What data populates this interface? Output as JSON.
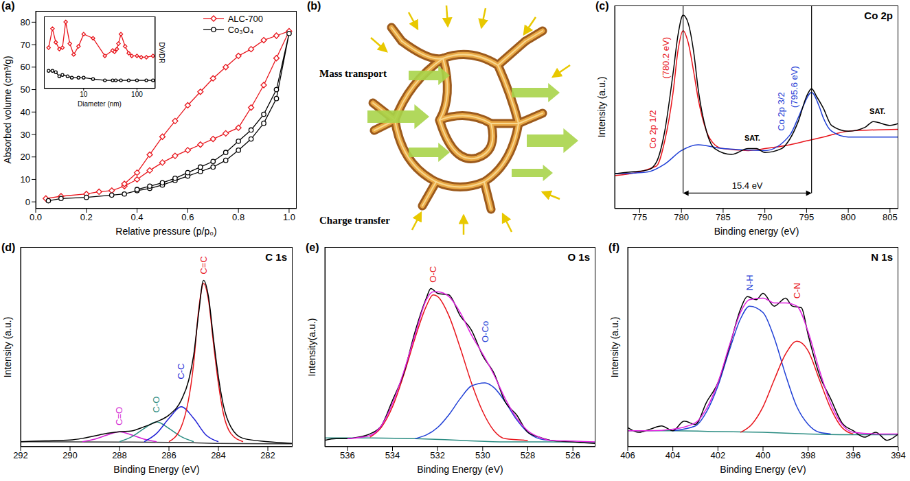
{
  "chart_data": [
    {
      "panel": "(a)",
      "type": "line",
      "x_label": "Relative pressure (p/p₀)",
      "y_label": "Absorbed volume (cm³/g)",
      "xlim": [
        0,
        1.03
      ],
      "xticks": [
        {
          "value": 0,
          "label": "0.0"
        },
        0.2,
        0.4,
        0.6,
        0.8,
        {
          "value": 1,
          "label": "1.0"
        }
      ],
      "ylim": [
        -3,
        85
      ],
      "yticks": [
        0,
        10,
        20,
        30,
        40,
        50,
        60,
        70,
        80
      ],
      "legend": "upper right",
      "series": [
        {
          "name": "ALC-700",
          "color": "#e8141b",
          "marker": "diamond",
          "x": [
            0.04,
            0.1,
            0.2,
            0.25,
            0.3,
            0.35,
            0.4,
            0.45,
            0.5,
            0.55,
            0.6,
            0.65,
            0.7,
            0.75,
            0.8,
            0.85,
            0.9,
            0.95,
            1.0,
            0.95,
            0.9,
            0.85,
            0.8,
            0.75,
            0.7,
            0.65,
            0.6,
            0.55,
            0.5,
            0.45,
            0.4,
            0.35
          ],
          "values": [
            1.5,
            2.5,
            3.5,
            4.5,
            5,
            7,
            10,
            14,
            17.5,
            20.5,
            23,
            25.5,
            28,
            30.5,
            33,
            42,
            52,
            64,
            76,
            74,
            72,
            68,
            65,
            60,
            55,
            49,
            43,
            36,
            29,
            21,
            13,
            8
          ]
        },
        {
          "name": "Co₃O₄",
          "color": "#000000",
          "marker": "circle",
          "x": [
            0.05,
            0.1,
            0.2,
            0.3,
            0.35,
            0.4,
            0.45,
            0.5,
            0.55,
            0.6,
            0.65,
            0.7,
            0.75,
            0.8,
            0.85,
            0.9,
            0.95,
            1.0,
            0.95,
            0.9,
            0.85,
            0.8,
            0.75,
            0.7,
            0.65,
            0.6,
            0.55,
            0.5,
            0.45,
            0.4
          ],
          "values": [
            0.5,
            1.5,
            2,
            3,
            3.5,
            5,
            6,
            7.5,
            9.5,
            11.5,
            13.5,
            15.5,
            18.5,
            23,
            28,
            35,
            46,
            75,
            50,
            39,
            32,
            27,
            22,
            18,
            15.5,
            13,
            10.5,
            8.5,
            7,
            5.5
          ]
        }
      ],
      "inset": {
        "type": "line",
        "x_label": "Diameter (nm)",
        "y_label": "DV/DR",
        "log": "x",
        "xlim": [
          1.8,
          220
        ],
        "xticks": [
          10,
          100
        ],
        "ylim": [
          35,
          88
        ],
        "tick_labels": "x",
        "series": [
          {
            "color": "#e8141b",
            "marker": "diamond",
            "x": [
              2.2,
              2.6,
              3,
              3.5,
              4,
              4.6,
              5.5,
              6.5,
              8,
              10,
              15,
              25,
              35,
              38,
              42,
              45,
              50,
              60,
              70,
              80,
              100,
              120,
              150,
              200
            ],
            "values": [
              65,
              79,
              69,
              64,
              65,
              84,
              68,
              60,
              66,
              75,
              72,
              59,
              63,
              62,
              64,
              68,
              75,
              66,
              61,
              59,
              59,
              58,
              58,
              59
            ]
          },
          {
            "color": "#000000",
            "marker": "circle",
            "x": [
              2.2,
              2.6,
              3,
              3.5,
              4,
              5,
              6,
              8,
              10,
              15,
              25,
              35,
              40,
              50,
              70,
              100,
              150,
              200
            ],
            "values": [
              48,
              48,
              47,
              44,
              45,
              44,
              43,
              43,
              43,
              42,
              41,
              41,
              41,
              41,
              41,
              41,
              41,
              41
            ]
          }
        ]
      }
    },
    {
      "panel": "(c)",
      "type": "line",
      "title": "Co 2p",
      "x_label": "Binding energy (eV)",
      "y_label": "Intensity (a.u.)",
      "xlim": [
        772,
        806
      ],
      "xticks": [
        775,
        780,
        785,
        790,
        795,
        800,
        805
      ],
      "ylim": [
        0,
        105
      ],
      "tick_labels": "x",
      "series": [
        {
          "color": "#e8141b",
          "x": [
            772,
            777,
            778,
            779,
            779.6,
            780.2,
            780.8,
            781.5,
            782,
            783,
            784,
            785,
            788,
            790,
            793,
            795,
            797,
            800,
            806
          ],
          "values": [
            17,
            22,
            35,
            60,
            82,
            92,
            86,
            70,
            57,
            40,
            33,
            31,
            30,
            31,
            33,
            35,
            37,
            40,
            41
          ]
        },
        {
          "color": "#1f3fd6",
          "x": [
            772,
            776,
            778,
            780,
            782,
            785,
            790,
            793,
            794,
            794.5,
            795.6,
            796.5,
            797,
            798,
            800,
            806
          ],
          "values": [
            18,
            19,
            23,
            30,
            33,
            31,
            30,
            38,
            47,
            52,
            60,
            53,
            47,
            40,
            37,
            37
          ]
        },
        {
          "color": "#000000",
          "x": [
            772,
            774,
            776,
            777,
            778,
            779,
            779.6,
            780.2,
            780.8,
            781.5,
            782,
            783,
            784,
            786,
            788,
            789,
            790,
            792,
            793,
            794,
            795,
            795.6,
            796.2,
            797,
            798,
            800,
            802,
            803,
            805,
            806
          ],
          "values": [
            18,
            19,
            20,
            24,
            40,
            70,
            90,
            100,
            96,
            80,
            62,
            40,
            31,
            28,
            31,
            31,
            29,
            31,
            36,
            45,
            58,
            62,
            58,
            52,
            43,
            40,
            42,
            45,
            43,
            44
          ]
        }
      ],
      "peaks": [
        {
          "x": 780.2,
          "name": "Co 2p 1/2",
          "label": "(780.2 eV)",
          "color": "#e8141b"
        },
        {
          "x": 795.6,
          "name": "Co 2p 3/2",
          "label": "(795.6 eV)",
          "color": "#1f3fd6"
        }
      ],
      "separation": {
        "from": 780.2,
        "to": 795.6,
        "y": 8,
        "label": "15.4 eV"
      },
      "annotations": [
        {
          "text": "SAT.",
          "x": 788.5,
          "y": 35
        },
        {
          "text": "SAT.",
          "x": 803.5,
          "y": 49
        }
      ]
    },
    {
      "panel": "(d)",
      "type": "line",
      "title": "C 1s",
      "x_label": "Binding Energy (eV)",
      "y_label": "Intensity (a.u.)",
      "xlim": [
        292,
        281
      ],
      "xticks": [
        292,
        290,
        288,
        286,
        284,
        282
      ],
      "ylim": [
        0,
        120
      ],
      "tick_labels": "x",
      "series": [
        {
          "color": "#333333",
          "x": [
            292,
            288,
            286,
            285,
            284,
            282,
            281
          ],
          "values": [
            3,
            2.8,
            2.6,
            2.4,
            2,
            1.8,
            1.8
          ]
        },
        {
          "name": "C=O",
          "color": "#d21fd2",
          "x": [
            289.5,
            289,
            288.5,
            288,
            287.5,
            287,
            286.5
          ],
          "values": [
            3,
            4.5,
            7,
            9,
            7,
            4.5,
            3
          ]
        },
        {
          "name": "C-O",
          "color": "#2a8c82",
          "x": [
            288,
            287.5,
            287,
            286.5,
            286,
            285.5,
            285
          ],
          "values": [
            3,
            6,
            11,
            15,
            11,
            6,
            3
          ]
        },
        {
          "name": "C-C",
          "color": "#1f1fd6",
          "x": [
            287,
            286.5,
            286,
            285.5,
            285,
            284.5,
            284
          ],
          "values": [
            3,
            8,
            17,
            24,
            17,
            7,
            3
          ]
        },
        {
          "name": "C=C",
          "color": "#e8141b",
          "x": [
            286,
            285.5,
            285,
            284.8,
            284.6,
            284.4,
            284.2,
            284,
            283.8,
            283.5,
            283
          ],
          "values": [
            3,
            12,
            50,
            82,
            98,
            88,
            62,
            38,
            20,
            8,
            3
          ]
        },
        {
          "color": "#000000",
          "x": [
            292,
            291,
            290,
            289.5,
            289,
            288.5,
            288,
            287.5,
            287,
            286.5,
            286,
            285.5,
            285.2,
            285,
            284.8,
            284.6,
            284.4,
            284.2,
            284,
            283.8,
            283.5,
            283,
            282,
            281
          ],
          "values": [
            3,
            3.5,
            4,
            5,
            6.5,
            8,
            9,
            9.5,
            12,
            15,
            19,
            28,
            40,
            55,
            80,
            100,
            90,
            65,
            42,
            25,
            12,
            5,
            3,
            2
          ]
        }
      ]
    },
    {
      "panel": "(e)",
      "type": "line",
      "title": "O 1s",
      "x_label": "Binding Energy (eV)",
      "y_label": "Intensity(a.u.)",
      "xlim": [
        537,
        525
      ],
      "xticks": [
        536,
        534,
        532,
        530,
        528,
        526
      ],
      "ylim": [
        0,
        125
      ],
      "tick_labels": "x",
      "series": [
        {
          "color": "#2a8c82",
          "x": [
            537,
            535,
            533,
            531,
            529,
            527,
            525
          ],
          "values": [
            5.5,
            5.5,
            5,
            4,
            3,
            3,
            2.5
          ]
        },
        {
          "name": "O-C",
          "color": "#e8141b",
          "x": [
            535,
            534.5,
            534,
            533.5,
            533,
            532.5,
            532.2,
            532,
            531.5,
            531,
            530.5,
            530,
            529.5,
            529,
            528
          ],
          "values": [
            6,
            12,
            25,
            45,
            68,
            88,
            95,
            94,
            82,
            62,
            40,
            22,
            10,
            5,
            4
          ]
        },
        {
          "name": "O-Co",
          "color": "#1f3fd6",
          "x": [
            533,
            532,
            531.5,
            531,
            530.5,
            529.9,
            529.5,
            529,
            528.5,
            528,
            527.5,
            527
          ],
          "values": [
            5,
            12,
            20,
            30,
            38,
            40,
            37,
            28,
            17,
            9,
            5,
            4
          ]
        },
        {
          "color": "#000000",
          "x": [
            537,
            536.5,
            536,
            535.5,
            535,
            534.5,
            534,
            533.5,
            533,
            532.5,
            532.3,
            532,
            531.5,
            531,
            530.5,
            530,
            529.5,
            529,
            528.5,
            528,
            527.5,
            527,
            526,
            525
          ],
          "values": [
            4,
            5,
            5,
            6,
            8,
            13,
            29,
            46,
            72,
            93,
            99,
            96,
            95,
            82,
            73,
            57,
            46,
            28,
            20,
            9,
            6,
            4,
            3,
            2
          ]
        },
        {
          "color": "#e020e0",
          "x": [
            536,
            535,
            534.5,
            534,
            533.5,
            533,
            532.5,
            532.2,
            532,
            531.5,
            531,
            530.5,
            530,
            529.5,
            529,
            528.5,
            528,
            527.5,
            527,
            526,
            525
          ],
          "values": [
            5,
            7,
            13,
            27,
            47,
            70,
            92,
            97,
            97,
            94,
            84,
            70,
            58,
            45,
            30,
            18,
            10,
            6,
            4,
            3.5,
            3
          ]
        }
      ]
    },
    {
      "panel": "(f)",
      "type": "line",
      "title": "N 1s",
      "x_label": "Binding Energy (eV)",
      "y_label": "Intensity (a.u.)",
      "xlim": [
        406,
        394
      ],
      "xticks": [
        406,
        404,
        402,
        400,
        398,
        396,
        394
      ],
      "ylim": [
        0,
        125
      ],
      "tick_labels": "x",
      "series": [
        {
          "color": "#2a8c82",
          "x": [
            406,
            404,
            402,
            400,
            398,
            396,
            394
          ],
          "values": [
            10,
            10,
            9.5,
            9,
            8,
            7.5,
            7.5
          ]
        },
        {
          "name": "N-H",
          "color": "#1f3fd6",
          "x": [
            404,
            403,
            402.5,
            402,
            401.5,
            401,
            400.6,
            400,
            399.5,
            399,
            398.5,
            398,
            397.5,
            397
          ],
          "values": [
            10,
            13,
            22,
            38,
            60,
            80,
            88,
            84,
            68,
            45,
            25,
            14,
            9,
            8
          ]
        },
        {
          "name": "C-N",
          "color": "#e8141b",
          "x": [
            401,
            400.5,
            400,
            399.5,
            399,
            398.5,
            398,
            397.5,
            397,
            396.5,
            396
          ],
          "values": [
            9,
            14,
            25,
            42,
            58,
            66,
            60,
            42,
            24,
            12,
            8
          ]
        },
        {
          "color": "#000000",
          "x": [
            406,
            405.5,
            405,
            404.5,
            404,
            403.5,
            403,
            402.5,
            402,
            401.5,
            401,
            400.7,
            400.3,
            400,
            399.5,
            399,
            398.7,
            398.3,
            398,
            397.5,
            397,
            396.5,
            396,
            395.5,
            395,
            394.5,
            394
          ],
          "values": [
            12,
            9,
            11,
            13,
            10,
            16,
            14,
            28,
            40,
            62,
            86,
            94,
            92,
            96,
            88,
            93,
            88,
            87,
            70,
            45,
            30,
            15,
            10,
            6,
            9,
            4,
            8
          ]
        },
        {
          "color": "#e020e0",
          "x": [
            406,
            405,
            404,
            403,
            402.5,
            402,
            401.5,
            401,
            400.6,
            400,
            399.5,
            399,
            398.5,
            398,
            397.5,
            397,
            396.5,
            396,
            395,
            394
          ],
          "values": [
            10,
            10,
            11,
            15,
            24,
            40,
            63,
            84,
            92,
            93,
            90,
            90,
            88,
            72,
            48,
            27,
            14,
            9,
            8,
            8
          ]
        }
      ]
    }
  ],
  "diagram": {
    "panel": "(b)",
    "labels": [
      "Mass transport",
      "Charge transfer"
    ]
  }
}
